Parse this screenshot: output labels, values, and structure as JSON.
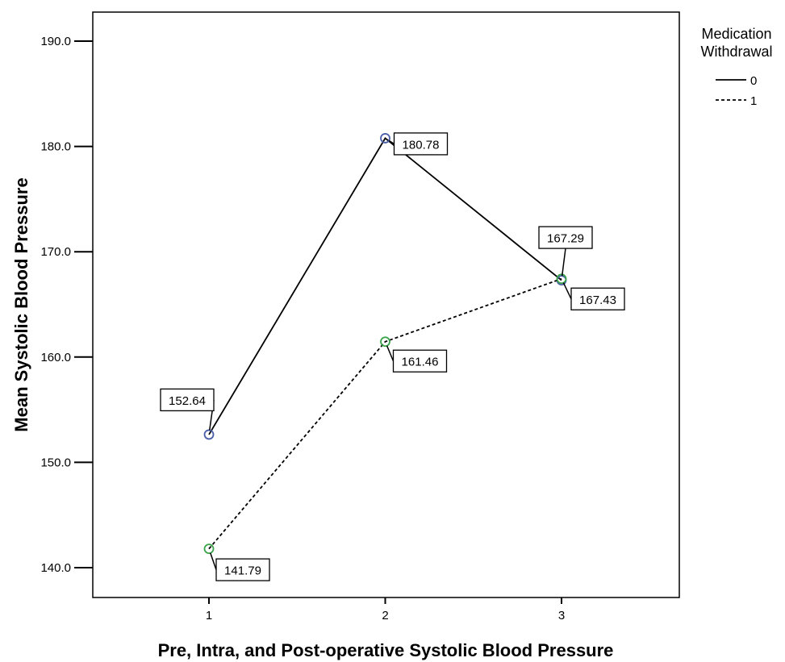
{
  "chart_data": {
    "type": "line",
    "xlabel": "Pre, Intra, and Post-operative Systolic Blood Pressure",
    "ylabel": "Mean Systolic Blood Pressure",
    "x": [
      1,
      2,
      3
    ],
    "x_tick_labels": [
      "1",
      "2",
      "3"
    ],
    "ylim": [
      137.4,
      191.9
    ],
    "y_ticks": [
      140.0,
      150.0,
      160.0,
      170.0,
      180.0,
      190.0
    ],
    "y_tick_labels": [
      "140.0",
      "150.0",
      "160.0",
      "170.0",
      "180.0",
      "190.0"
    ],
    "grid": false,
    "legend": {
      "title_line1": "Medication",
      "title_line2": "Withdrawal",
      "placement": "right"
    },
    "series": [
      {
        "name": "0",
        "values": [
          152.64,
          180.78,
          167.29
        ],
        "data_labels": [
          "152.64",
          "180.78",
          "167.29"
        ],
        "line_style": "solid",
        "marker_color": "#4a5fa8"
      },
      {
        "name": "1",
        "values": [
          141.79,
          161.46,
          167.43
        ],
        "data_labels": [
          "141.79",
          "161.46",
          "167.43"
        ],
        "line_style": "dashed",
        "marker_color": "#3aa34a"
      }
    ]
  }
}
